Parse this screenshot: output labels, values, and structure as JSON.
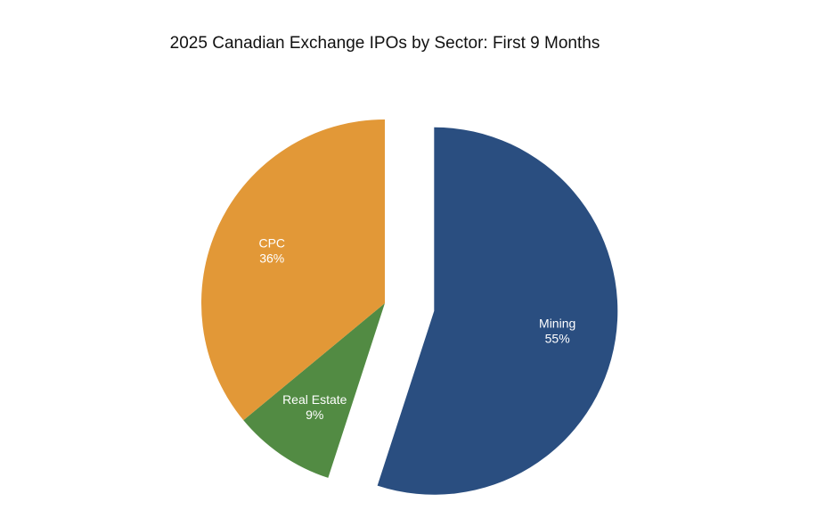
{
  "chart_data": {
    "type": "pie",
    "title": "2025 Canadian Exchange IPOs by Sector: First 9 Months",
    "slices": [
      {
        "name": "Mining",
        "value": 55,
        "label": "55%",
        "color": "#2a4e80",
        "exploded": true
      },
      {
        "name": "Real Estate",
        "value": 9,
        "label": "9%",
        "color": "#528b43",
        "exploded": false
      },
      {
        "name": "CPC",
        "value": 36,
        "label": "36%",
        "color": "#e29837",
        "exploded": false
      }
    ]
  }
}
